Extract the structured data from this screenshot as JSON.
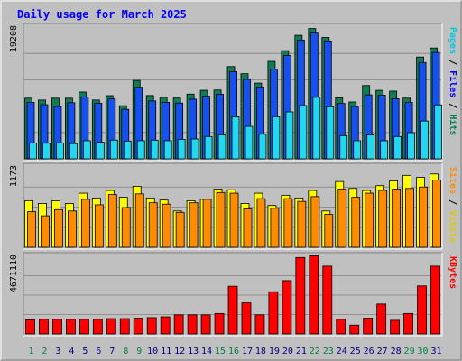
{
  "chart_data": {
    "type": "bar",
    "title": "Daily usage for March 2025",
    "categories": [
      "1",
      "2",
      "3",
      "4",
      "5",
      "6",
      "7",
      "8",
      "9",
      "10",
      "11",
      "12",
      "13",
      "14",
      "15",
      "16",
      "17",
      "18",
      "19",
      "20",
      "21",
      "22",
      "23",
      "24",
      "25",
      "26",
      "27",
      "28",
      "29",
      "30",
      "31"
    ],
    "weekend_days": [
      "1",
      "2",
      "8",
      "9",
      "15",
      "16",
      "22",
      "23",
      "29",
      "30"
    ],
    "panels": [
      {
        "name": "top",
        "ymax": 19208,
        "ymax_label": "19208",
        "axis_labels": [
          "Pages",
          "Files",
          "Hits"
        ],
        "series": [
          {
            "name": "Hits",
            "color": "#117d52",
            "values": [
              8840,
              8570,
              8840,
              8840,
              9740,
              8570,
              9210,
              7740,
              11430,
              9230,
              8970,
              8860,
              9440,
              9990,
              10030,
              13450,
              12410,
              11040,
              14210,
              15770,
              18010,
              19000,
              17690,
              8900,
              8290,
              10690,
              9990,
              9870,
              8850,
              14840,
              16160
            ]
          },
          {
            "name": "Files",
            "color": "#1650ee",
            "values": [
              8240,
              7890,
              7630,
              8180,
              9000,
              8110,
              8750,
              7210,
              10430,
              8440,
              8240,
              8130,
              8690,
              9130,
              9420,
              12710,
              11580,
              10460,
              13080,
              15050,
              17320,
              18340,
              17190,
              8070,
              7630,
              9330,
              9290,
              8750,
              8240,
              14040,
              15500
            ]
          },
          {
            "name": "Pages",
            "color": "#22d8f0",
            "values": [
              2320,
              2270,
              2320,
              2220,
              2640,
              2420,
              2730,
              2590,
              2640,
              2720,
              2640,
              2840,
              2890,
              3250,
              3490,
              6130,
              4730,
              3580,
              6130,
              6840,
              7760,
              8970,
              7590,
              3380,
              2640,
              3490,
              2640,
              3250,
              3810,
              5510,
              7860
            ]
          }
        ]
      },
      {
        "name": "middle",
        "ymax": 1173,
        "ymax_label": "1173",
        "axis_labels": [
          "Sites",
          "Visits"
        ],
        "series": [
          {
            "name": "Visits",
            "color": "#ffff00",
            "values": [
              680,
              640,
              680,
              640,
              790,
              720,
              830,
              730,
              890,
              720,
              690,
              530,
              680,
              700,
              850,
              840,
              640,
              790,
              610,
              760,
              720,
              830,
              530,
              960,
              860,
              830,
              900,
              970,
              1050,
              1020,
              1070
            ]
          },
          {
            "name": "Sites",
            "color": "#ff8c00",
            "values": [
              520,
              460,
              550,
              530,
              700,
              620,
              770,
              580,
              780,
              650,
              630,
              510,
              650,
              700,
              800,
              790,
              560,
              710,
              570,
              710,
              670,
              740,
              480,
              850,
              730,
              790,
              830,
              850,
              860,
              880,
              980
            ]
          }
        ]
      },
      {
        "name": "bottom",
        "ymax": 4671110,
        "ymax_label": "4671110",
        "axis_labels": [
          "KBytes"
        ],
        "series": [
          {
            "name": "KBytes",
            "color": "#ff0000",
            "values": [
              850000,
              880000,
              880000,
              880000,
              880000,
              880000,
              920000,
              920000,
              950000,
              980000,
              1030000,
              1150000,
              1150000,
              1150000,
              1230000,
              2870000,
              1870000,
              1150000,
              2540000,
              3210000,
              4600000,
              4700000,
              4080000,
              880000,
              530000,
              950000,
              1800000,
              820000,
              1230000,
              2890000,
              4080000
            ]
          }
        ]
      }
    ]
  }
}
